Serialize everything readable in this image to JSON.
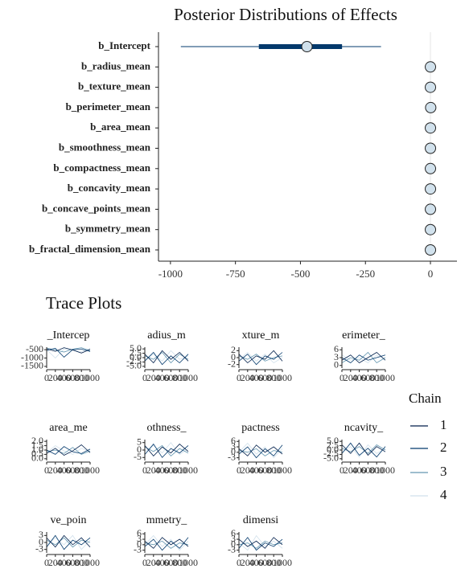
{
  "chart_data": [
    {
      "type": "interval",
      "title": "Posterior Distributions of Effects",
      "categories": [
        "b_Intercept",
        "b_radius_mean",
        "b_texture_mean",
        "b_perimeter_mean",
        "b_area_mean",
        "b_smoothness_mean",
        "b_compactness_mean",
        "b_concavity_mean",
        "b_concave_points_mean",
        "b_symmetry_mean",
        "b_fractal_dimension_mean"
      ],
      "values": [
        -475,
        0,
        0,
        1,
        0,
        0,
        0,
        0,
        0,
        0,
        0
      ],
      "inner_low": [
        -660,
        -2,
        -1,
        -1,
        -1,
        -2,
        -2,
        -2,
        -2,
        -2,
        -2
      ],
      "inner_high": [
        -340,
        2,
        1,
        2,
        1,
        2,
        2,
        2,
        2,
        2,
        2
      ],
      "outer_low": [
        -960,
        -4,
        -2,
        -2,
        -1,
        -4,
        -4,
        -4,
        -4,
        -4,
        -4
      ],
      "outer_high": [
        -190,
        4,
        2,
        4,
        2,
        4,
        4,
        4,
        4,
        4,
        4
      ],
      "xlim": [
        -1046,
        102
      ],
      "xticks": [
        -1000,
        -750,
        -500,
        -250,
        0
      ],
      "color": "#03396c",
      "point_color": "#d1e1ec"
    },
    {
      "type": "trace",
      "title": "Trace Plots",
      "x": [
        0,
        200,
        400,
        600,
        800,
        1000
      ],
      "xlim": [
        0,
        1000
      ],
      "xticks": [
        0,
        200,
        400,
        600,
        800,
        1000
      ],
      "legend_title": "Chain",
      "legend_position": "right",
      "chains": [
        {
          "name": "1",
          "color": "#011f4b"
        },
        {
          "name": "2",
          "color": "#03396c"
        },
        {
          "name": "3",
          "color": "#6497b1"
        },
        {
          "name": "4",
          "color": "#d1e1ec"
        }
      ],
      "panels": [
        {
          "title": "_Intercep",
          "ylim": [
            -1600,
            -350
          ],
          "yticks": [
            -500,
            -1000,
            -1500
          ],
          "values": [
            [
              -450,
              -600,
              -380,
              -520,
              -700,
              -480
            ],
            [
              -550,
              -420,
              -950,
              -500,
              -460,
              -610
            ],
            [
              -400,
              -520,
              -640,
              -470,
              -380,
              -560
            ],
            [
              -500,
              -1000,
              -450,
              -530,
              -600,
              -420
            ]
          ]
        },
        {
          "title": "adius_m",
          "ylim": [
            -6,
            6
          ],
          "yticks": [
            {
              "value": 5,
              "label": "5.0"
            },
            {
              "value": 2.5,
              "label": "2.5"
            },
            {
              "value": 0,
              "label": "0.0"
            },
            {
              "value": -2.5,
              "label": "-2.5"
            },
            {
              "value": -5,
              "label": "-5.0"
            }
          ],
          "values": [
            [
              2,
              -3,
              4,
              -1,
              3,
              -2
            ],
            [
              -2,
              3,
              -4,
              1,
              -3,
              2
            ],
            [
              1,
              -1,
              3,
              -3,
              2,
              -1
            ],
            [
              -1,
              2,
              -2,
              4,
              -1,
              1
            ]
          ]
        },
        {
          "title": "xture_m",
          "ylim": [
            -3,
            3
          ],
          "yticks": [
            2,
            0,
            -2
          ],
          "values": [
            [
              1,
              -1.5,
              0.5,
              -0.5,
              2,
              -1
            ],
            [
              -1,
              1,
              -2,
              0.5,
              -0.5,
              1.5
            ],
            [
              0.5,
              -0.5,
              1,
              -1,
              0,
              0.5
            ],
            [
              -0.5,
              1.5,
              -1,
              1,
              -1.5,
              0
            ]
          ]
        },
        {
          "title": "erimeter_",
          "ylim": [
            -1,
            7
          ],
          "yticks": [
            6,
            3,
            0
          ],
          "values": [
            [
              2,
              4,
              1,
              3,
              5,
              2
            ],
            [
              3,
              1,
              4,
              2,
              3,
              4
            ],
            [
              1,
              3,
              2,
              5,
              1,
              3
            ],
            [
              4,
              2,
              3,
              1,
              4,
              2
            ]
          ]
        },
        {
          "title": "area_me",
          "ylim": [
            -0.2,
            2.2
          ],
          "yticks": [
            {
              "value": 2,
              "label": "2.0"
            },
            {
              "value": 1.5,
              "label": "1.5"
            },
            {
              "value": 1,
              "label": "1.0"
            },
            {
              "value": 0.5,
              "label": "0.5"
            },
            {
              "value": 0,
              "label": "0.0"
            }
          ],
          "values": [
            [
              0.6,
              1.2,
              0.4,
              0.9,
              1.6,
              0.7
            ],
            [
              1,
              0.5,
              1.4,
              0.8,
              0.6,
              1.1
            ],
            [
              0.8,
              1,
              0.6,
              1.3,
              0.5,
              0.9
            ],
            [
              0.7,
              1.5,
              0.9,
              0.5,
              1.2,
              0.8
            ]
          ]
        },
        {
          "title": "othness_",
          "ylim": [
            -7,
            7
          ],
          "yticks": [
            5,
            0,
            -5
          ],
          "values": [
            [
              3,
              -4,
              2,
              -2,
              4,
              -1
            ],
            [
              -3,
              4,
              -5,
              1,
              -2,
              3
            ],
            [
              2,
              -1,
              3,
              -4,
              1,
              -2
            ],
            [
              -1,
              3,
              -2,
              5,
              -3,
              1
            ]
          ]
        },
        {
          "title": "pactness",
          "ylim": [
            -4.5,
            7
          ],
          "yticks": [
            6,
            3,
            0,
            -3
          ],
          "values": [
            [
              2,
              -2,
              4,
              0,
              3,
              -1
            ],
            [
              -1,
              3,
              -3,
              2,
              -2,
              4
            ],
            [
              1,
              0,
              2,
              -2,
              1,
              0
            ],
            [
              0,
              5,
              -1,
              3,
              -3,
              2
            ]
          ]
        },
        {
          "title": "ncavity_",
          "ylim": [
            -6,
            6
          ],
          "yticks": [
            {
              "value": 5,
              "label": "5.0"
            },
            {
              "value": 2.5,
              "label": "2.5"
            },
            {
              "value": 0,
              "label": "0.0"
            },
            {
              "value": -2.5,
              "label": "-2.5"
            },
            {
              "value": -5,
              "label": "-5.0"
            }
          ],
          "values": [
            [
              3,
              -2,
              4,
              -3,
              2,
              -1
            ],
            [
              -2,
              4,
              -3,
              1,
              -4,
              2
            ],
            [
              1,
              -1,
              2,
              -2,
              3,
              0
            ],
            [
              -1,
              2,
              -4,
              3,
              -2,
              1
            ]
          ]
        },
        {
          "title": "ve_poin",
          "ylim": [
            -4.5,
            4.5
          ],
          "yticks": [
            3,
            0,
            -3
          ],
          "values": [
            [
              2,
              -2,
              3,
              -1,
              2,
              -2
            ],
            [
              -2,
              3,
              -3,
              1,
              -1,
              2
            ],
            [
              1,
              -1,
              2,
              -2,
              1,
              0
            ],
            [
              -1,
              2,
              -1,
              3,
              -3,
              1
            ]
          ]
        },
        {
          "title": "mmetry_",
          "ylim": [
            -4.5,
            7
          ],
          "yticks": [
            6,
            3,
            0,
            -3
          ],
          "values": [
            [
              2,
              -2,
              4,
              0,
              3,
              -1
            ],
            [
              -1,
              3,
              -3,
              2,
              -2,
              4
            ],
            [
              1,
              0,
              2,
              -2,
              1,
              0
            ],
            [
              0,
              5,
              -1,
              3,
              -3,
              2
            ]
          ]
        },
        {
          "title": "dimensi",
          "ylim": [
            -4.5,
            7
          ],
          "yticks": [
            6,
            3,
            0,
            -3
          ],
          "values": [
            [
              3,
              -1,
              2,
              -2,
              4,
              0
            ],
            [
              -2,
              4,
              -3,
              1,
              -1,
              3
            ],
            [
              0,
              1,
              -2,
              2,
              0,
              1
            ],
            [
              1,
              -3,
              5,
              -1,
              2,
              -2
            ]
          ]
        }
      ]
    }
  ]
}
